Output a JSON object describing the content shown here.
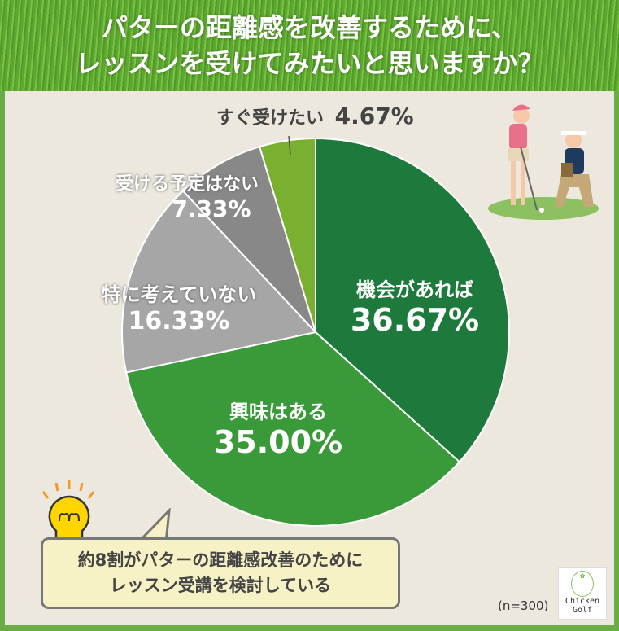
{
  "header": {
    "title_line1": "パターの距離感を改善するために、",
    "title_line2": "レッスンを受けてみたいと思いますか？"
  },
  "chart_data": {
    "type": "pie",
    "start": "top",
    "direction": "clockwise",
    "slices": [
      {
        "label": "機会があれば",
        "value": 36.67,
        "display": "36.67%",
        "color": "#1e7a3c"
      },
      {
        "label": "興味はある",
        "value": 35.0,
        "display": "35.00%",
        "color": "#3a9a3a"
      },
      {
        "label": "特に考えていない",
        "value": 16.33,
        "display": "16.33%",
        "color": "#a6a6a6"
      },
      {
        "label": "受ける予定はない",
        "value": 7.33,
        "display": "7.33%",
        "color": "#888888"
      },
      {
        "label": "すぐ受けたい",
        "value": 4.67,
        "display": "4.67%",
        "color": "#7ab030"
      }
    ]
  },
  "callout": {
    "line1": "約8割がパターの距離感改善のために",
    "line2": "レッスン受講を検討している"
  },
  "sample_size": "(n=300)",
  "logo": {
    "line1": "Chicken",
    "line2": "Golf"
  }
}
